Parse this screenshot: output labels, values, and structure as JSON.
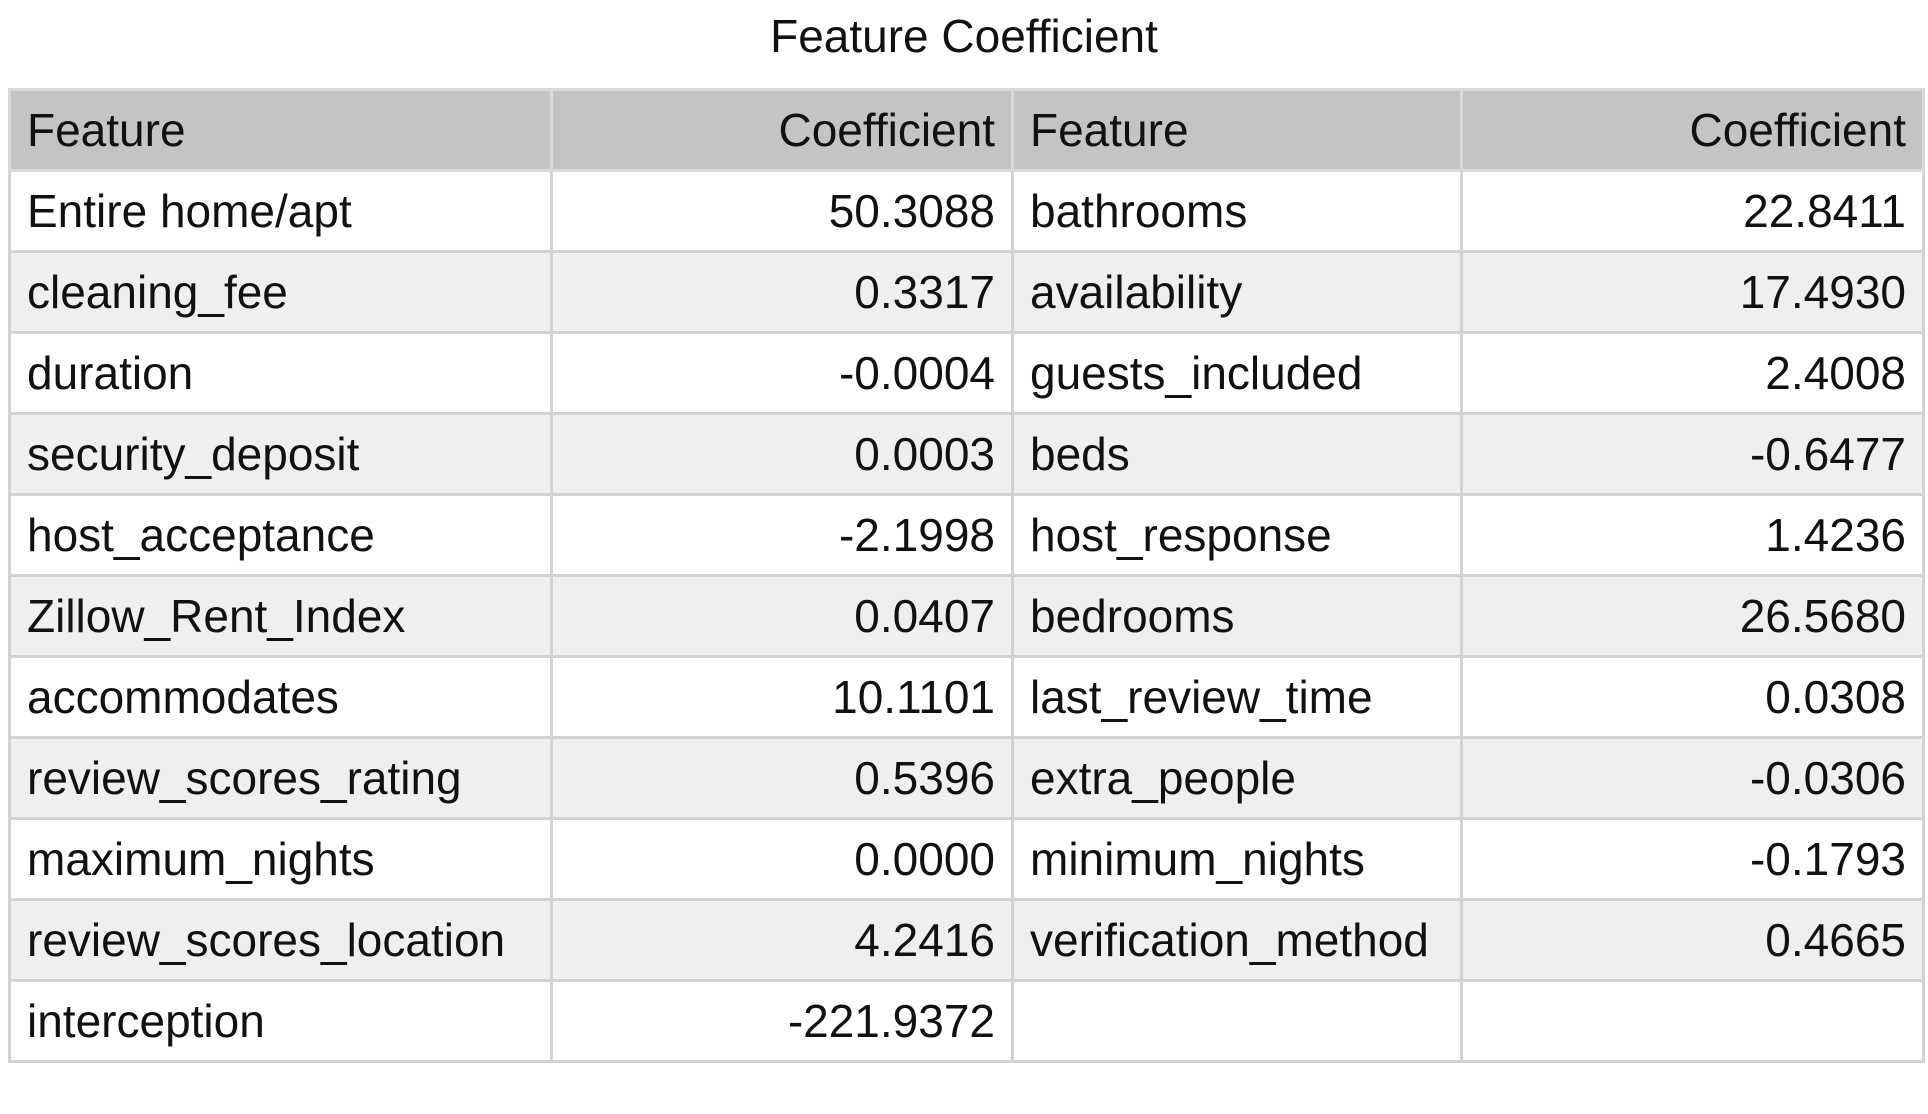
{
  "chart_data": {
    "type": "table",
    "title": "Feature Coefficient",
    "columns": [
      "Feature",
      "Coefficient",
      "Feature",
      "Coefficient"
    ],
    "rows": [
      [
        "Entire home/apt",
        "50.3088",
        "bathrooms",
        "22.8411"
      ],
      [
        "cleaning_fee",
        "0.3317",
        "availability",
        "17.4930"
      ],
      [
        "duration",
        "-0.0004",
        "guests_included",
        "2.4008"
      ],
      [
        "security_deposit",
        "0.0003",
        "beds",
        "-0.6477"
      ],
      [
        "host_acceptance",
        "-2.1998",
        "host_response",
        "1.4236"
      ],
      [
        "Zillow_Rent_Index",
        "0.0407",
        "bedrooms",
        "26.5680"
      ],
      [
        "accommodates",
        "10.1101",
        "last_review_time",
        "0.0308"
      ],
      [
        "review_scores_rating",
        "0.5396",
        "extra_people",
        "-0.0306"
      ],
      [
        "maximum_nights",
        "0.0000",
        "minimum_nights",
        "-0.1793"
      ],
      [
        "review_scores_location",
        "4.2416",
        "verification_method",
        "0.4665"
      ],
      [
        "interception",
        "-221.9372",
        "",
        ""
      ]
    ],
    "colors": {
      "header_bg": "#c4c4c4",
      "row_alt_bg": "#efefef",
      "row_bg": "#ffffff",
      "border": "#d2d2d2"
    }
  }
}
